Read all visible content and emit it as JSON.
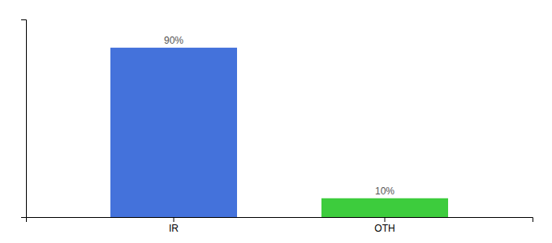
{
  "chart_data": {
    "type": "bar",
    "categories": [
      "IR",
      "OTH"
    ],
    "values": [
      90,
      10
    ],
    "value_labels": [
      "90%",
      "10%"
    ],
    "colors": [
      "#4472db",
      "#3dcc3d"
    ],
    "ylim": [
      0,
      105
    ],
    "yticks": [],
    "tick_labels": "x",
    "data_labels": true
  }
}
